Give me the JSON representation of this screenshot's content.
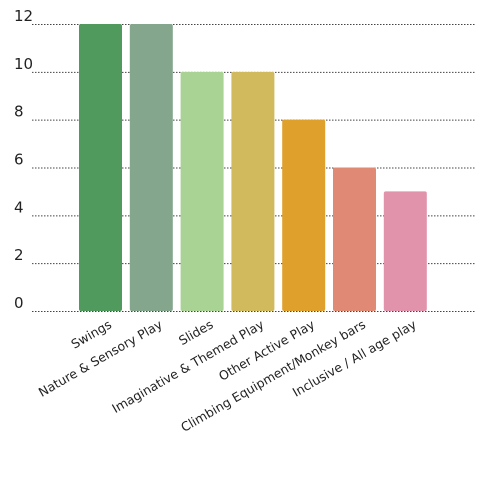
{
  "chart_data": {
    "type": "bar",
    "title": "",
    "xlabel": "",
    "ylabel": "",
    "ylim": [
      0,
      12
    ],
    "yticks": [
      0,
      2,
      4,
      6,
      8,
      10,
      12
    ],
    "grid": true,
    "legend": "none",
    "categories": [
      "Swings",
      "Nature & Sensory Play",
      "Slides",
      "Imaginative & Themed Play",
      "Other Active Play",
      "Climbing Equipment/Monkey bars",
      "Inclusive / All age play"
    ],
    "values": [
      12,
      12,
      10,
      10,
      8,
      6,
      5
    ],
    "colors": [
      "#519a5e",
      "#84a68c",
      "#a9d394",
      "#d1ba5e",
      "#e0a12c",
      "#e08a75",
      "#e293ac"
    ]
  }
}
